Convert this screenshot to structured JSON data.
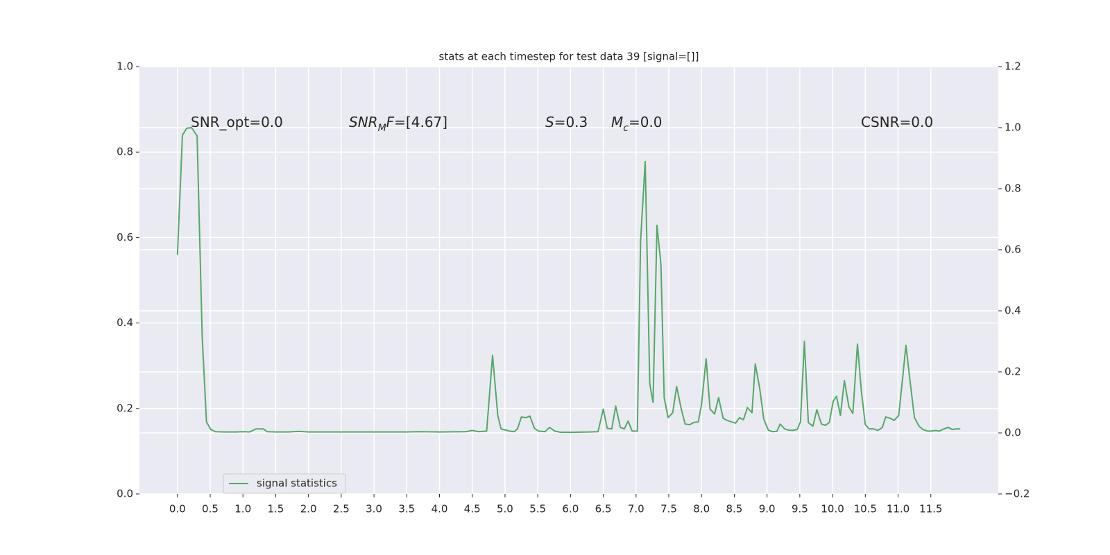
{
  "chart_data": {
    "type": "line",
    "title": "stats at each timestep for test data 39 [signal=[]]",
    "x": [
      0,
      0.076,
      0.14,
      0.216,
      0.3,
      0.378,
      0.443,
      0.51,
      0.58,
      0.7,
      0.9,
      1.0,
      1.1,
      1.2,
      1.31,
      1.37,
      1.5,
      1.7,
      1.85,
      2.0,
      2.5,
      3.0,
      3.5,
      3.7,
      4.0,
      4.4,
      4.5,
      4.6,
      4.72,
      4.81,
      4.89,
      4.94,
      5.07,
      5.14,
      5.19,
      5.25,
      5.32,
      5.38,
      5.45,
      5.51,
      5.61,
      5.68,
      5.76,
      5.85,
      6.0,
      6.3,
      6.42,
      6.5,
      6.56,
      6.63,
      6.69,
      6.76,
      6.82,
      6.88,
      6.94,
      7.02,
      7.07,
      7.14,
      7.21,
      7.26,
      7.32,
      7.38,
      7.43,
      7.49,
      7.56,
      7.62,
      7.69,
      7.75,
      7.82,
      7.88,
      7.95,
      8.0,
      8.07,
      8.13,
      8.2,
      8.26,
      8.33,
      8.39,
      8.46,
      8.52,
      8.58,
      8.64,
      8.7,
      8.77,
      8.82,
      8.89,
      8.95,
      9.02,
      9.08,
      9.15,
      9.2,
      9.27,
      9.33,
      9.39,
      9.46,
      9.51,
      9.57,
      9.63,
      9.7,
      9.76,
      9.83,
      9.89,
      9.95,
      10.01,
      10.06,
      10.12,
      10.18,
      10.25,
      10.31,
      10.38,
      10.44,
      10.5,
      10.56,
      10.63,
      10.69,
      10.76,
      10.81,
      10.88,
      10.94,
      11.01,
      11.07,
      11.12,
      11.19,
      11.25,
      11.32,
      11.38,
      11.45,
      11.5,
      11.57,
      11.63,
      11.7,
      11.76,
      11.83,
      11.88,
      11.95
    ],
    "series": [
      {
        "name": "signal statistics",
        "color": "#55a868",
        "axis": "y2",
        "values": [
          0.583,
          0.975,
          0.998,
          1.0,
          0.973,
          0.315,
          0.036,
          0.011,
          0.004,
          0.003,
          0.003,
          0.004,
          0.003,
          0.013,
          0.013,
          0.004,
          0.003,
          0.003,
          0.005,
          0.003,
          0.003,
          0.003,
          0.003,
          0.004,
          0.003,
          0.004,
          0.008,
          0.004,
          0.006,
          0.254,
          0.057,
          0.013,
          0.006,
          0.004,
          0.013,
          0.052,
          0.05,
          0.055,
          0.015,
          0.006,
          0.004,
          0.018,
          0.006,
          0.002,
          0.002,
          0.003,
          0.004,
          0.078,
          0.015,
          0.013,
          0.088,
          0.018,
          0.013,
          0.039,
          0.006,
          0.006,
          0.63,
          0.889,
          0.16,
          0.1,
          0.68,
          0.553,
          0.115,
          0.05,
          0.066,
          0.152,
          0.079,
          0.029,
          0.027,
          0.034,
          0.036,
          0.093,
          0.243,
          0.078,
          0.062,
          0.116,
          0.048,
          0.041,
          0.036,
          0.032,
          0.05,
          0.043,
          0.083,
          0.066,
          0.226,
          0.143,
          0.045,
          0.009,
          0.004,
          0.005,
          0.029,
          0.013,
          0.009,
          0.008,
          0.011,
          0.036,
          0.3,
          0.034,
          0.022,
          0.076,
          0.029,
          0.025,
          0.034,
          0.104,
          0.12,
          0.057,
          0.171,
          0.085,
          0.064,
          0.291,
          0.136,
          0.027,
          0.013,
          0.013,
          0.008,
          0.018,
          0.052,
          0.048,
          0.041,
          0.057,
          0.18,
          0.287,
          0.157,
          0.05,
          0.022,
          0.011,
          0.006,
          0.006,
          0.008,
          0.006,
          0.013,
          0.018,
          0.011,
          0.013,
          0.013
        ]
      }
    ],
    "xlim": [
      -0.58,
      12.53
    ],
    "xticks": [
      {
        "value": 0,
        "label": "0.0"
      },
      0.5,
      {
        "value": 1,
        "label": "1.0"
      },
      1.5,
      {
        "value": 2,
        "label": "2.0"
      },
      2.5,
      {
        "value": 3,
        "label": "3.0"
      },
      3.5,
      {
        "value": 4,
        "label": "4.0"
      },
      4.5,
      {
        "value": 5,
        "label": "5.0"
      },
      5.5,
      {
        "value": 6,
        "label": "6.0"
      },
      6.5,
      {
        "value": 7,
        "label": "7.0"
      },
      7.5,
      {
        "value": 8,
        "label": "8.0"
      },
      8.5,
      {
        "value": 9,
        "label": "9.0"
      },
      9.5,
      {
        "value": 10,
        "label": "10.0"
      },
      10.5,
      {
        "value": 11,
        "label": "11.0"
      },
      11.5
    ],
    "ylim": [
      0,
      1
    ],
    "yticks": [
      {
        "value": 0,
        "label": "0.0"
      },
      0.2,
      0.4,
      0.6,
      0.8,
      {
        "value": 1,
        "label": "1.0"
      }
    ],
    "y2lim": [
      -0.2,
      1.2
    ],
    "y2ticks": [
      {
        "value": -0.2,
        "label": "−0.2"
      },
      {
        "value": 0,
        "label": "0.0"
      },
      0.2,
      0.4,
      0.6,
      0.8,
      {
        "value": 1,
        "label": "1.0"
      },
      1.2
    ],
    "grid": true,
    "legend": "lower left",
    "annotations": [
      [
        {
          "text": "SNR_opt=0.0"
        }
      ],
      [
        {
          "text": "SNR",
          "italic": true
        },
        {
          "text": "M",
          "italic": true,
          "sub": true
        },
        {
          "text": "F",
          "italic": true
        },
        {
          "text": "=[4.67]"
        }
      ],
      [
        {
          "text": "S",
          "italic": true
        },
        {
          "text": "=0.3"
        }
      ],
      [
        {
          "text": "M",
          "italic": true
        },
        {
          "text": "c",
          "italic": true,
          "sub": true
        },
        {
          "text": "=0.0"
        }
      ],
      [
        {
          "text": "CSNR=0.0"
        }
      ]
    ]
  }
}
